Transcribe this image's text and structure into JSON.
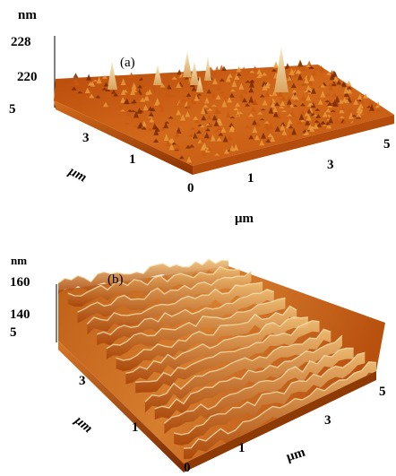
{
  "panel_a": {
    "label": "(a)",
    "z_unit": "nm",
    "z_ticks": [
      "228",
      "220",
      "5"
    ],
    "y_ticks": [
      "3",
      "1"
    ],
    "y_unit": "μm",
    "x_ticks": [
      "0",
      "1",
      "3",
      "5"
    ],
    "x_unit": "μm"
  },
  "panel_b": {
    "label": "(b)",
    "z_unit": "nm",
    "z_ticks": [
      "160",
      "140",
      "5"
    ],
    "y_ticks": [
      "3",
      "1"
    ],
    "y_unit": "μm",
    "x_ticks": [
      "0",
      "1",
      "3",
      "5"
    ],
    "x_unit": "μm"
  },
  "colors": {
    "surface_dark": "#7a2a00",
    "surface_mid": "#c85a10",
    "surface_light": "#e89a3c",
    "peak_highlight": "#f3e4b6"
  }
}
